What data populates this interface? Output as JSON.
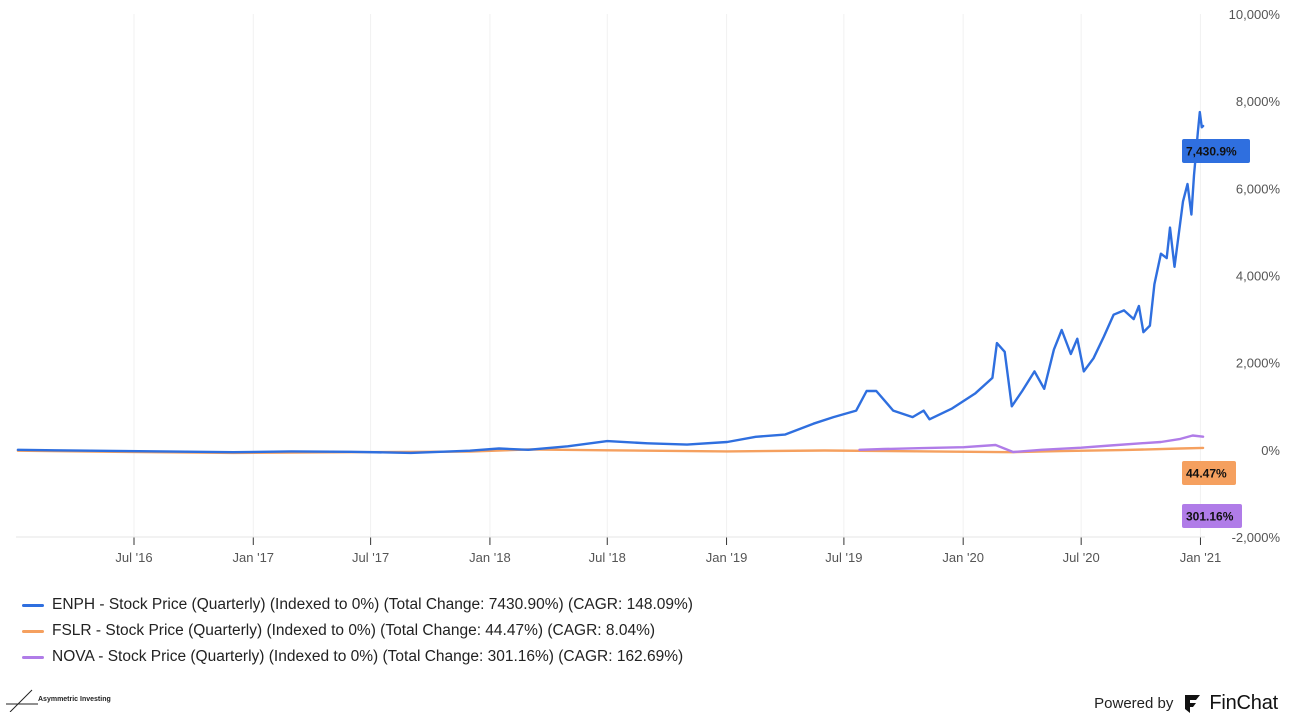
{
  "chart_data": {
    "type": "line",
    "title": "",
    "xlabel": "",
    "ylabel": "",
    "y_axis_position": "right",
    "ylim": [
      -2000,
      10000
    ],
    "y_ticks": [
      10000,
      8000,
      6000,
      4000,
      2000,
      0,
      -2000
    ],
    "y_tick_labels": [
      "10,000%",
      "8,000%",
      "6,000%",
      "4,000%",
      "2,000%",
      "0%",
      "-2,000%"
    ],
    "x_range": [
      "2016-01-01",
      "2021-01-08"
    ],
    "x_ticks": [
      "2016-07-01",
      "2017-01-01",
      "2017-07-01",
      "2018-01-01",
      "2018-07-01",
      "2019-01-01",
      "2019-07-01",
      "2020-01-01",
      "2020-07-01",
      "2021-01-01"
    ],
    "x_tick_labels": [
      "Jul '16",
      "Jan '17",
      "Jul '17",
      "Jan '18",
      "Jul '18",
      "Jan '19",
      "Jul '19",
      "Jan '20",
      "Jul '20",
      "Jan '21"
    ],
    "grid": "vertical",
    "legend_position": "bottom-left",
    "series": [
      {
        "name": "ENPH - Stock Price (Quarterly) (Indexed to 0%) (Total Change: 7430.90%) (CAGR: 148.09%)",
        "color": "#2f6fdf",
        "end_label": "7,430.9%",
        "points": [
          [
            "2016-01-04",
            0
          ],
          [
            "2016-03-01",
            -10
          ],
          [
            "2016-06-01",
            -25
          ],
          [
            "2016-09-01",
            -40
          ],
          [
            "2016-12-01",
            -55
          ],
          [
            "2017-03-01",
            -35
          ],
          [
            "2017-06-01",
            -45
          ],
          [
            "2017-09-01",
            -70
          ],
          [
            "2017-12-01",
            -20
          ],
          [
            "2018-01-15",
            30
          ],
          [
            "2018-03-01",
            0
          ],
          [
            "2018-05-01",
            80
          ],
          [
            "2018-07-01",
            200
          ],
          [
            "2018-09-01",
            150
          ],
          [
            "2018-11-01",
            120
          ],
          [
            "2019-01-02",
            180
          ],
          [
            "2019-02-15",
            300
          ],
          [
            "2019-04-01",
            350
          ],
          [
            "2019-05-15",
            600
          ],
          [
            "2019-06-15",
            750
          ],
          [
            "2019-07-20",
            900
          ],
          [
            "2019-08-05",
            1350
          ],
          [
            "2019-08-20",
            1350
          ],
          [
            "2019-09-15",
            900
          ],
          [
            "2019-10-15",
            750
          ],
          [
            "2019-11-01",
            900
          ],
          [
            "2019-11-10",
            700
          ],
          [
            "2019-12-15",
            950
          ],
          [
            "2020-01-20",
            1300
          ],
          [
            "2020-02-15",
            1650
          ],
          [
            "2020-02-22",
            2450
          ],
          [
            "2020-03-05",
            2250
          ],
          [
            "2020-03-16",
            1000
          ],
          [
            "2020-04-01",
            1350
          ],
          [
            "2020-04-20",
            1800
          ],
          [
            "2020-05-05",
            1400
          ],
          [
            "2020-05-20",
            2300
          ],
          [
            "2020-06-01",
            2750
          ],
          [
            "2020-06-15",
            2200
          ],
          [
            "2020-06-25",
            2550
          ],
          [
            "2020-07-05",
            1800
          ],
          [
            "2020-07-20",
            2100
          ],
          [
            "2020-08-05",
            2600
          ],
          [
            "2020-08-20",
            3100
          ],
          [
            "2020-09-05",
            3200
          ],
          [
            "2020-09-20",
            3000
          ],
          [
            "2020-09-28",
            3300
          ],
          [
            "2020-10-05",
            2700
          ],
          [
            "2020-10-15",
            2850
          ],
          [
            "2020-10-22",
            3800
          ],
          [
            "2020-11-01",
            4500
          ],
          [
            "2020-11-10",
            4400
          ],
          [
            "2020-11-15",
            5100
          ],
          [
            "2020-11-22",
            4200
          ],
          [
            "2020-12-05",
            5700
          ],
          [
            "2020-12-12",
            6100
          ],
          [
            "2020-12-18",
            5400
          ],
          [
            "2020-12-22",
            6300
          ],
          [
            "2020-12-28",
            7300
          ],
          [
            "2020-12-31",
            7750
          ],
          [
            "2021-01-03",
            7400
          ],
          [
            "2021-01-05",
            7430.9
          ]
        ]
      },
      {
        "name": "FSLR - Stock Price (Quarterly) (Indexed to 0%) (Total Change: 44.47%) (CAGR: 8.04%)",
        "color": "#f5a05f",
        "end_label": "44.47%",
        "points": [
          [
            "2016-01-04",
            -20
          ],
          [
            "2016-06-01",
            -45
          ],
          [
            "2016-12-01",
            -70
          ],
          [
            "2017-06-01",
            -55
          ],
          [
            "2017-12-01",
            -40
          ],
          [
            "2018-03-01",
            10
          ],
          [
            "2018-07-01",
            -10
          ],
          [
            "2019-01-02",
            -35
          ],
          [
            "2019-06-01",
            -15
          ],
          [
            "2019-12-01",
            -40
          ],
          [
            "2020-03-16",
            -55
          ],
          [
            "2020-06-01",
            -30
          ],
          [
            "2020-09-01",
            -5
          ],
          [
            "2020-12-01",
            30
          ],
          [
            "2021-01-05",
            44.47
          ]
        ]
      },
      {
        "name": "NOVA - Stock Price (Quarterly) (Indexed to 0%) (Total Change: 301.16%) (CAGR: 162.69%)",
        "color": "#b07ce8",
        "end_label": "301.16%",
        "points": [
          [
            "2019-07-25",
            0
          ],
          [
            "2019-09-01",
            20
          ],
          [
            "2019-11-01",
            40
          ],
          [
            "2020-01-02",
            60
          ],
          [
            "2020-02-20",
            110
          ],
          [
            "2020-03-18",
            -50
          ],
          [
            "2020-05-01",
            0
          ],
          [
            "2020-07-01",
            50
          ],
          [
            "2020-08-15",
            100
          ],
          [
            "2020-10-01",
            150
          ],
          [
            "2020-11-01",
            180
          ],
          [
            "2020-12-01",
            250
          ],
          [
            "2020-12-20",
            330
          ],
          [
            "2021-01-05",
            301.16
          ]
        ]
      }
    ]
  },
  "legend": {
    "items": [
      "ENPH - Stock Price (Quarterly) (Indexed to 0%) (Total Change: 7430.90%) (CAGR: 148.09%)",
      "FSLR - Stock Price (Quarterly) (Indexed to 0%) (Total Change: 44.47%) (CAGR: 8.04%)",
      "NOVA - Stock Price (Quarterly) (Indexed to 0%) (Total Change: 301.16%) (CAGR: 162.69%)"
    ]
  },
  "branding": {
    "left_logo_text": "Asymmetric Investing",
    "powered_by": "Powered by",
    "finchat": "FinChat"
  }
}
